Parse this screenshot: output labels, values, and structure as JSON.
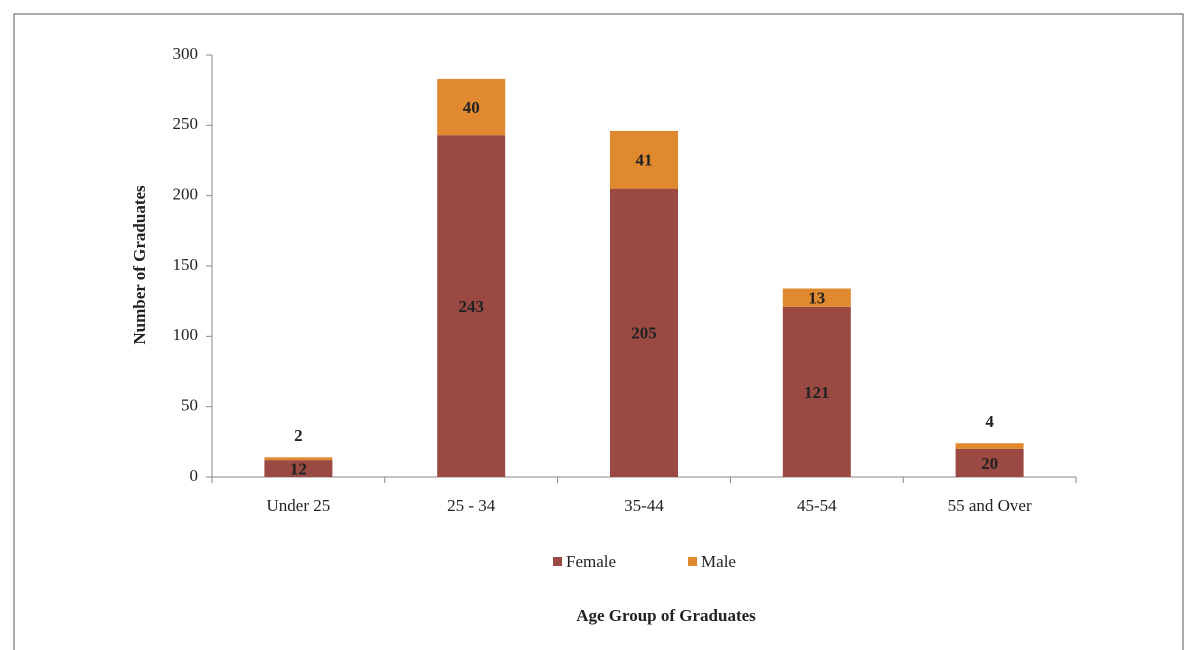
{
  "chart_data": {
    "type": "stacked_bar",
    "x_label": "Age Group of Graduates",
    "y_label": "Number of Graduates",
    "categories": [
      "Under 25",
      "25 - 34",
      "35-44",
      "45-54",
      "55 and Over"
    ],
    "series": [
      {
        "name": "Female",
        "color": "#9a4a43",
        "values": [
          12,
          243,
          205,
          121,
          20
        ]
      },
      {
        "name": "Male",
        "color": "#e0892f",
        "values": [
          2,
          40,
          41,
          13,
          4
        ]
      }
    ],
    "ylim": [
      0,
      300
    ],
    "yticks": [
      0,
      50,
      100,
      150,
      200,
      250,
      300
    ],
    "legend": "bottom"
  }
}
